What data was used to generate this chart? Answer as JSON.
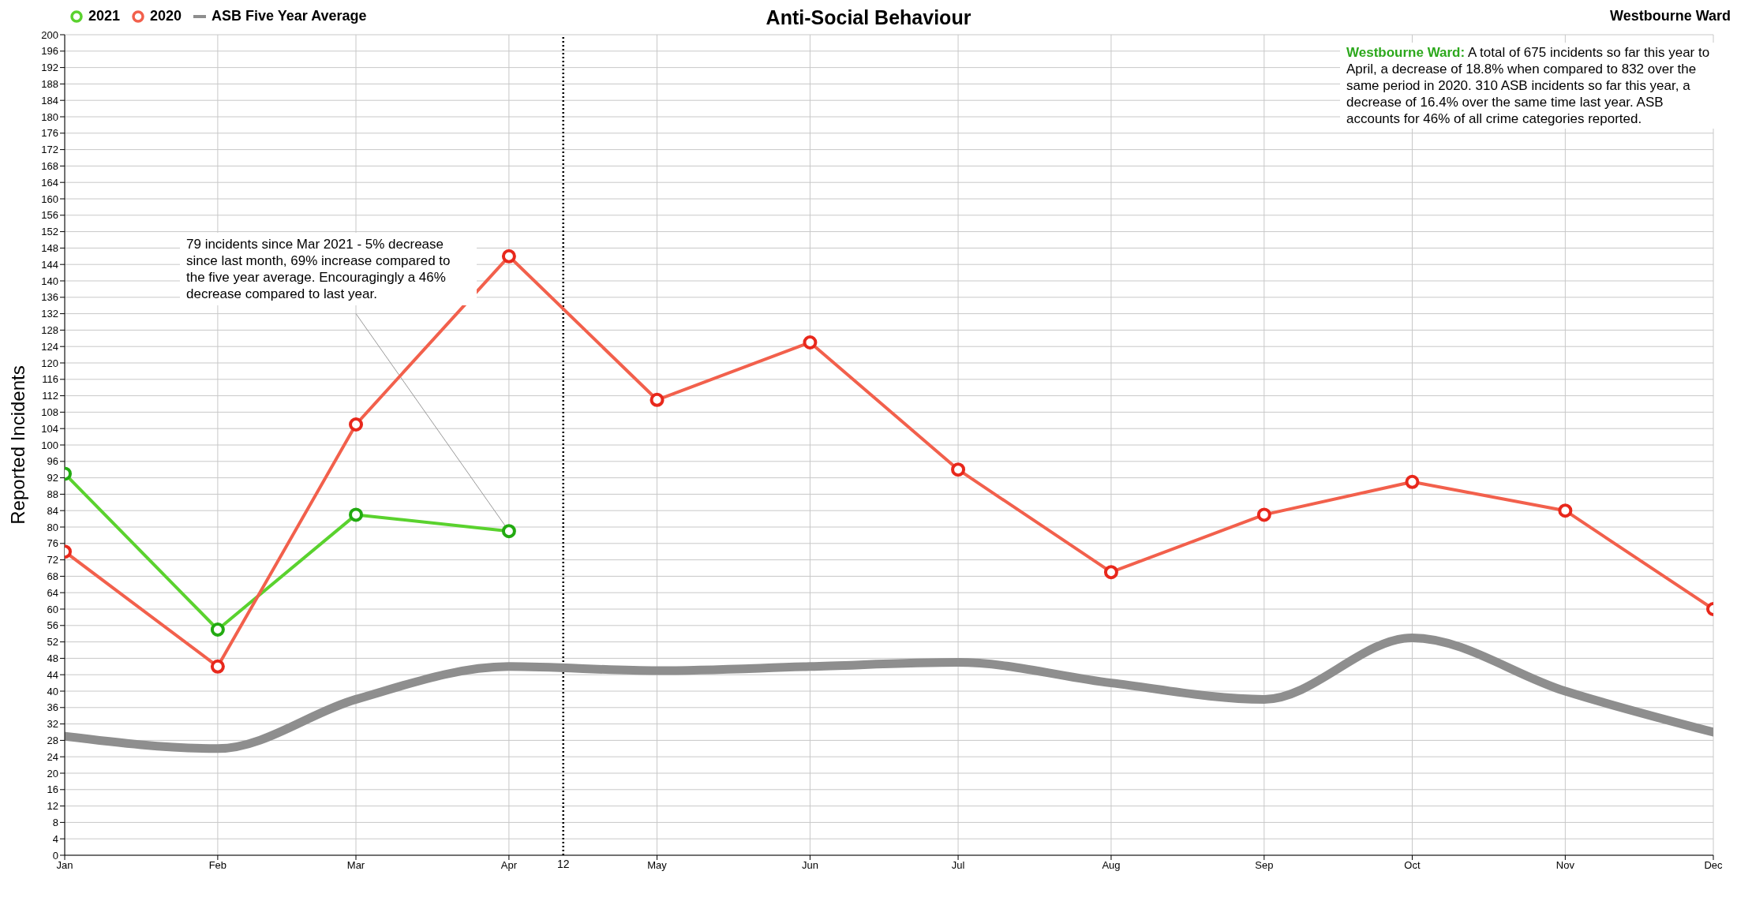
{
  "chart_data": {
    "type": "line",
    "title": "Anti-Social Behaviour",
    "subtitle": "Westbourne Ward",
    "ylabel": "Reported Incidents",
    "x": [
      "--01-01",
      "--02-01",
      "--03-01",
      "--04-01",
      "--05-01",
      "--06-01",
      "--07-01",
      "--08-01",
      "--09-01",
      "--10-01",
      "--11-01",
      "--12-01"
    ],
    "xlim": [
      "--01-01",
      "--12-01"
    ],
    "xticks": [
      {
        "value": "--01-01",
        "label": "Jan"
      },
      {
        "value": "--02-01",
        "label": "Feb"
      },
      {
        "value": "--03-01",
        "label": "Mar"
      },
      {
        "value": "--04-01",
        "label": "Apr"
      },
      {
        "value": "--05-01",
        "label": "May"
      },
      {
        "value": "--06-01",
        "label": "Jun"
      },
      {
        "value": "--07-01",
        "label": "Jul"
      },
      {
        "value": "--08-01",
        "label": "Aug"
      },
      {
        "value": "--09-01",
        "label": "Sep"
      },
      {
        "value": "--10-01",
        "label": "Oct"
      },
      {
        "value": "--11-01",
        "label": "Nov"
      },
      {
        "value": "--12-01",
        "label": "Dec"
      }
    ],
    "ylim": [
      0,
      200
    ],
    "yticks": [
      0,
      4,
      8,
      12,
      16,
      20,
      24,
      28,
      32,
      36,
      40,
      44,
      48,
      52,
      56,
      60,
      64,
      68,
      72,
      76,
      80,
      84,
      88,
      92,
      96,
      100,
      104,
      108,
      112,
      116,
      120,
      124,
      128,
      132,
      136,
      140,
      144,
      148,
      152,
      156,
      160,
      164,
      168,
      172,
      176,
      180,
      184,
      188,
      192,
      196,
      200
    ],
    "series": [
      {
        "name": "2021",
        "color": "#5ad22e",
        "marker": "circle",
        "values": [
          93,
          55,
          83,
          79,
          null,
          null,
          null,
          null,
          null,
          null,
          null,
          null
        ]
      },
      {
        "name": "2020",
        "color": "#f2604c",
        "marker": "circle",
        "values": [
          74,
          46,
          105,
          146,
          111,
          125,
          94,
          69,
          83,
          91,
          84,
          60
        ]
      },
      {
        "name": "ASB Five Year Average",
        "color": "#8e8e8e",
        "marker": "none",
        "values": [
          29,
          26,
          38,
          46,
          45,
          46,
          47,
          42,
          38,
          53,
          40,
          30
        ]
      }
    ],
    "ref_lines": [
      {
        "axis": "x",
        "value": "--04-12",
        "label": "12",
        "color": "#000000",
        "line_style": "dotted"
      }
    ],
    "annotations": [
      {
        "text": "79 incidents since Mar 2021 -  5% decrease since last month, 69% increase compared to the five year average. Encouragingly a 46% decrease compared to last year.",
        "x": "--04-01",
        "y": 79
      },
      "Westbourne Ward:",
      "A total of 675 incidents so far this year to April, a decrease of 18.8% when compared to 832 over the same period in 2020. 310 ASB incidents so far this year, a decrease of 16.4% over the same time last year. ASB accounts for 46% of all crime categories reported."
    ],
    "grid": true,
    "legend": "top left"
  }
}
